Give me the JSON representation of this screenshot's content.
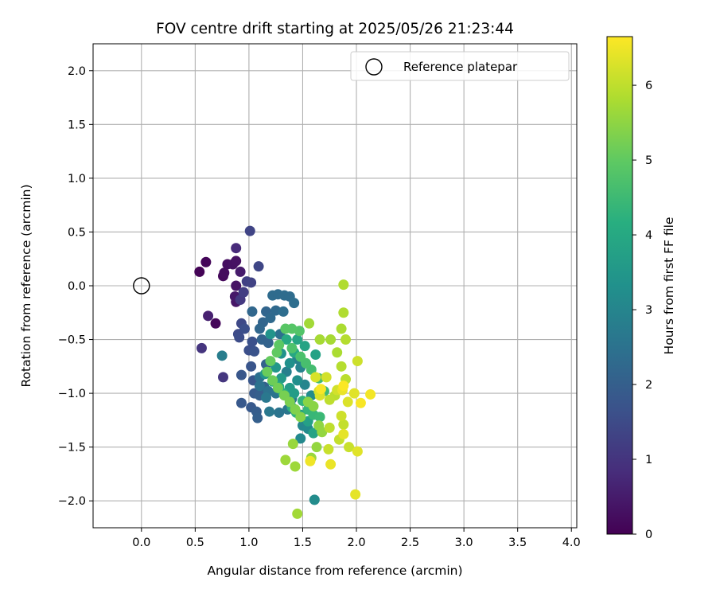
{
  "chart_data": {
    "type": "scatter",
    "title": "FOV centre drift starting at 2025/05/26 21:23:44",
    "xlabel": "Angular distance from reference (arcmin)",
    "ylabel": "Rotation from reference (arcmin)",
    "xlim": [
      -0.45,
      4.05
    ],
    "ylim": [
      -2.25,
      2.25
    ],
    "xticks": [
      "0.0",
      "0.5",
      "1.0",
      "1.5",
      "2.0",
      "2.5",
      "3.0",
      "3.5",
      "4.0"
    ],
    "yticks": [
      "−2.0",
      "−1.5",
      "−1.0",
      "−0.5",
      "0.0",
      "0.5",
      "1.0",
      "1.5",
      "2.0"
    ],
    "grid": true,
    "legend": {
      "placement": "top-right",
      "entries": [
        "Reference platepar"
      ]
    },
    "reference_point": {
      "x": 0.0,
      "y": 0.0
    },
    "colorbar": {
      "label": "Hours from first FF file",
      "colormap": "viridis",
      "range": [
        0,
        6.65
      ],
      "ticks": [
        "0",
        "1",
        "2",
        "3",
        "4",
        "5",
        "6"
      ]
    },
    "points": [
      [
        0.54,
        0.13,
        0.05
      ],
      [
        0.6,
        0.22,
        0.1
      ],
      [
        0.69,
        -0.35,
        0.12
      ],
      [
        0.76,
        0.09,
        0.15
      ],
      [
        0.77,
        0.12,
        0.2
      ],
      [
        0.8,
        0.2,
        0.25
      ],
      [
        0.85,
        0.2,
        0.3
      ],
      [
        0.88,
        0.23,
        0.33
      ],
      [
        0.88,
        0.0,
        0.35
      ],
      [
        0.88,
        -0.15,
        0.4
      ],
      [
        0.87,
        -0.1,
        0.45
      ],
      [
        0.92,
        0.13,
        0.5
      ],
      [
        0.62,
        -0.28,
        0.6
      ],
      [
        0.88,
        0.35,
        0.8
      ],
      [
        0.56,
        -0.58,
        1.0
      ],
      [
        0.76,
        -0.85,
        1.05
      ],
      [
        0.92,
        -0.13,
        1.1
      ],
      [
        0.95,
        -0.06,
        1.2
      ],
      [
        0.98,
        0.04,
        1.25
      ],
      [
        1.02,
        0.03,
        1.3
      ],
      [
        1.01,
        0.51,
        1.35
      ],
      [
        1.09,
        0.18,
        1.4
      ],
      [
        0.93,
        -0.35,
        1.45
      ],
      [
        0.9,
        -0.45,
        1.5
      ],
      [
        0.91,
        -0.48,
        1.55
      ],
      [
        0.96,
        -0.4,
        1.6
      ],
      [
        1.0,
        -0.6,
        1.6
      ],
      [
        1.03,
        -0.52,
        1.65
      ],
      [
        1.05,
        -0.61,
        1.7
      ],
      [
        1.02,
        -0.75,
        1.75
      ],
      [
        1.04,
        -0.88,
        1.8
      ],
      [
        0.93,
        -0.83,
        1.8
      ],
      [
        0.93,
        -1.09,
        1.85
      ],
      [
        1.02,
        -1.13,
        1.85
      ],
      [
        1.05,
        -1.0,
        1.9
      ],
      [
        1.07,
        -1.17,
        1.95
      ],
      [
        1.1,
        -1.02,
        2.0
      ],
      [
        1.08,
        -1.23,
        2.0
      ],
      [
        1.14,
        -0.94,
        2.05
      ],
      [
        1.16,
        -0.73,
        2.05
      ],
      [
        1.12,
        -0.5,
        2.1
      ],
      [
        1.18,
        -0.53,
        2.1
      ],
      [
        1.13,
        -0.34,
        2.15
      ],
      [
        1.16,
        -0.24,
        2.15
      ],
      [
        1.03,
        -0.24,
        2.2
      ],
      [
        1.1,
        -0.4,
        2.2
      ],
      [
        1.2,
        -0.3,
        2.25
      ],
      [
        1.25,
        -0.23,
        2.25
      ],
      [
        1.22,
        -0.09,
        2.3
      ],
      [
        1.27,
        -0.08,
        2.3
      ],
      [
        1.33,
        -0.09,
        2.35
      ],
      [
        1.38,
        -0.1,
        2.35
      ],
      [
        1.42,
        -0.16,
        2.4
      ],
      [
        1.32,
        -0.24,
        2.4
      ],
      [
        1.29,
        -0.45,
        2.45
      ],
      [
        1.1,
        -0.85,
        2.45
      ],
      [
        1.1,
        -0.93,
        2.5
      ],
      [
        1.18,
        -0.98,
        2.5
      ],
      [
        1.25,
        -1.0,
        2.55
      ],
      [
        1.28,
        -1.18,
        2.55
      ],
      [
        1.36,
        -1.15,
        2.6
      ],
      [
        1.4,
        -1.05,
        2.6
      ],
      [
        1.19,
        -1.17,
        2.65
      ],
      [
        1.16,
        -1.04,
        2.65
      ],
      [
        0.75,
        -0.65,
        2.8
      ],
      [
        1.35,
        -0.8,
        2.85
      ],
      [
        1.45,
        -0.68,
        2.9
      ],
      [
        1.48,
        -0.76,
        2.95
      ],
      [
        1.52,
        -0.92,
        3.0
      ],
      [
        1.5,
        -1.3,
        3.05
      ],
      [
        1.48,
        -1.42,
        3.1
      ],
      [
        1.55,
        -1.33,
        3.15
      ],
      [
        1.58,
        -1.02,
        3.2
      ],
      [
        1.45,
        -0.88,
        3.25
      ],
      [
        1.38,
        -0.72,
        3.3
      ],
      [
        1.3,
        -0.63,
        3.35
      ],
      [
        1.2,
        -0.45,
        3.4
      ],
      [
        1.15,
        -0.82,
        3.45
      ],
      [
        1.25,
        -0.76,
        3.5
      ],
      [
        1.3,
        -0.86,
        3.55
      ],
      [
        1.38,
        -0.95,
        3.6
      ],
      [
        1.42,
        -1.0,
        3.65
      ],
      [
        1.48,
        -1.2,
        3.7
      ],
      [
        1.55,
        -1.26,
        3.75
      ],
      [
        1.6,
        -1.37,
        3.8
      ],
      [
        1.62,
        -0.64,
        3.8
      ],
      [
        1.52,
        -0.56,
        3.85
      ],
      [
        1.45,
        -0.5,
        3.9
      ],
      [
        1.42,
        -0.62,
        3.95
      ],
      [
        1.35,
        -0.5,
        4.0
      ],
      [
        1.22,
        -0.89,
        4.05
      ],
      [
        1.28,
        -0.94,
        4.1
      ],
      [
        1.32,
        -1.0,
        4.15
      ],
      [
        1.4,
        -1.13,
        4.2
      ],
      [
        1.44,
        -1.18,
        4.25
      ],
      [
        1.5,
        -1.07,
        4.3
      ],
      [
        1.55,
        -1.15,
        4.35
      ],
      [
        1.6,
        -1.2,
        4.4
      ],
      [
        1.66,
        -1.22,
        4.45
      ],
      [
        1.7,
        -0.98,
        4.5
      ],
      [
        1.65,
        -0.86,
        4.55
      ],
      [
        1.58,
        -0.78,
        4.6
      ],
      [
        1.53,
        -0.72,
        4.65
      ],
      [
        1.48,
        -0.66,
        4.7
      ],
      [
        1.4,
        -0.58,
        4.75
      ],
      [
        1.47,
        -0.42,
        4.8
      ],
      [
        1.4,
        -0.4,
        4.85
      ],
      [
        1.34,
        -0.4,
        4.9
      ],
      [
        1.28,
        -0.55,
        4.95
      ],
      [
        1.26,
        -0.62,
        5.0
      ],
      [
        1.2,
        -0.7,
        5.05
      ],
      [
        1.17,
        -0.8,
        5.1
      ],
      [
        1.22,
        -0.88,
        5.15
      ],
      [
        1.27,
        -0.95,
        5.2
      ],
      [
        1.33,
        -1.02,
        5.25
      ],
      [
        1.38,
        -1.08,
        5.3
      ],
      [
        1.43,
        -1.15,
        5.35
      ],
      [
        1.48,
        -1.22,
        5.4
      ],
      [
        1.55,
        -1.08,
        5.45
      ],
      [
        1.6,
        -1.12,
        5.45
      ],
      [
        1.65,
        -1.3,
        5.5
      ],
      [
        1.68,
        -1.36,
        5.55
      ],
      [
        1.63,
        -1.5,
        5.55
      ],
      [
        1.58,
        -1.6,
        5.6
      ],
      [
        1.41,
        -1.47,
        5.6
      ],
      [
        1.34,
        -1.62,
        5.65
      ],
      [
        1.43,
        -1.68,
        5.65
      ],
      [
        1.45,
        -2.12,
        5.7
      ],
      [
        1.56,
        -0.35,
        5.7
      ],
      [
        1.66,
        -0.5,
        5.75
      ],
      [
        1.76,
        -0.5,
        5.75
      ],
      [
        1.82,
        -0.62,
        5.8
      ],
      [
        1.86,
        -0.4,
        5.8
      ],
      [
        1.88,
        -0.25,
        5.85
      ],
      [
        1.88,
        0.01,
        5.85
      ],
      [
        1.9,
        -0.5,
        5.9
      ],
      [
        1.86,
        -0.75,
        5.9
      ],
      [
        1.9,
        -0.87,
        5.95
      ],
      [
        1.8,
        -1.02,
        5.95
      ],
      [
        1.75,
        -1.06,
        6.0
      ],
      [
        1.75,
        -1.32,
        6.0
      ],
      [
        1.84,
        -1.43,
        6.05
      ],
      [
        1.88,
        -1.29,
        6.05
      ],
      [
        1.93,
        -1.5,
        6.1
      ],
      [
        1.74,
        -1.52,
        6.1
      ],
      [
        2.01,
        -0.7,
        6.15
      ],
      [
        1.86,
        -1.21,
        6.15
      ],
      [
        1.82,
        -0.97,
        6.2
      ],
      [
        1.72,
        -0.85,
        6.2
      ],
      [
        1.62,
        -0.85,
        6.25
      ],
      [
        1.65,
        -0.98,
        6.25
      ],
      [
        1.66,
        -1.02,
        6.3
      ],
      [
        1.92,
        -1.08,
        6.3
      ],
      [
        1.98,
        -1.0,
        6.35
      ],
      [
        2.01,
        -1.54,
        6.35
      ],
      [
        1.99,
        -1.94,
        6.4
      ],
      [
        1.88,
        -1.38,
        6.4
      ],
      [
        1.87,
        -0.97,
        6.45
      ],
      [
        1.76,
        -1.66,
        6.45
      ],
      [
        1.57,
        -1.63,
        6.5
      ],
      [
        2.13,
        -1.01,
        6.55
      ],
      [
        2.04,
        -1.09,
        6.6
      ],
      [
        1.67,
        -0.96,
        6.6
      ],
      [
        1.61,
        -1.99,
        3.2
      ],
      [
        1.88,
        -0.93,
        6.62
      ]
    ]
  }
}
